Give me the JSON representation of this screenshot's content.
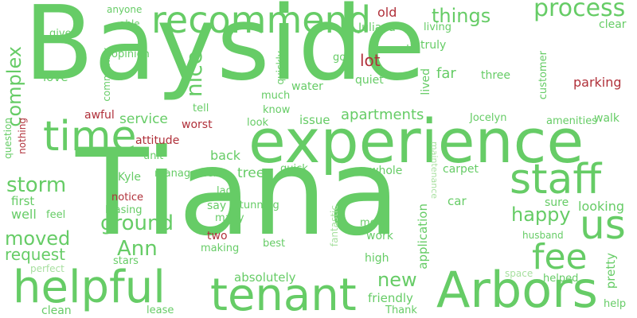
{
  "words": {
    "baysider": "Bayside",
    "tiana": "Tiana",
    "experience": "experience",
    "arbors": "Arbors",
    "tenant": "tenant",
    "helpful": "helpful",
    "recommend": "recommend",
    "staff": "staff",
    "time": "time",
    "fee": "fee",
    "us": "us",
    "process": "process",
    "things": "things",
    "nice": "nice",
    "complex": "complex",
    "ground": "ground",
    "storm": "storm",
    "moved": "moved",
    "request": "request",
    "happy": "happy",
    "new": "new",
    "apartments": "apartments",
    "ann": "Ann",
    "lot": "lot",
    "old": "old",
    "juliana": "Juliana",
    "anyone": "anyone",
    "able": "able",
    "give": "give",
    "opinion": "opinion",
    "love": "love",
    "community": "community",
    "quickly": "quickly",
    "much": "much",
    "water": "water",
    "know": "know",
    "quiet": "quiet",
    "far": "far",
    "lived": "lived",
    "around": "around",
    "truly": "truly",
    "living": "living",
    "go": "go",
    "clear": "clear",
    "three": "three",
    "customer": "customer",
    "parking": "parking",
    "walk": "walk",
    "amenities": "amenities",
    "jocelyn": "Jocelyn",
    "issue": "issue",
    "awful": "awful",
    "tell": "tell",
    "worst": "worst",
    "look": "look",
    "service": "service",
    "attitude": "attitude",
    "question": "question",
    "nothing": "nothing",
    "unit": "unit",
    "back": "back",
    "management": "management",
    "tree": "tree",
    "quick": "quick",
    "whole": "whole",
    "carpet": "carpet",
    "maintenance": "maintenance",
    "kyle": "Kyle",
    "first": "first",
    "well": "well",
    "feel": "feel",
    "notice": "notice",
    "leasing": "leasing",
    "lady": "lady",
    "say": "say",
    "stunning": "stunning",
    "many": "many",
    "two": "two",
    "making": "making",
    "best": "best",
    "fantastic": "fantastic",
    "work": "work",
    "high": "high",
    "move": "move",
    "application": "application",
    "car": "car",
    "sure": "sure",
    "looking": "looking",
    "husband": "husband",
    "pretty": "pretty",
    "space": "space",
    "helped": "helped",
    "stars": "stars",
    "perfect": "perfect",
    "absolutely": "absolutely",
    "friendly": "friendly",
    "thank": "Thank",
    "clean": "clean",
    "lease": "lease",
    "help": "help"
  },
  "colors": {
    "green": "#66cc66",
    "light_green": "#a8e0a0",
    "red": "#b0303a",
    "background": "#ffffff"
  }
}
